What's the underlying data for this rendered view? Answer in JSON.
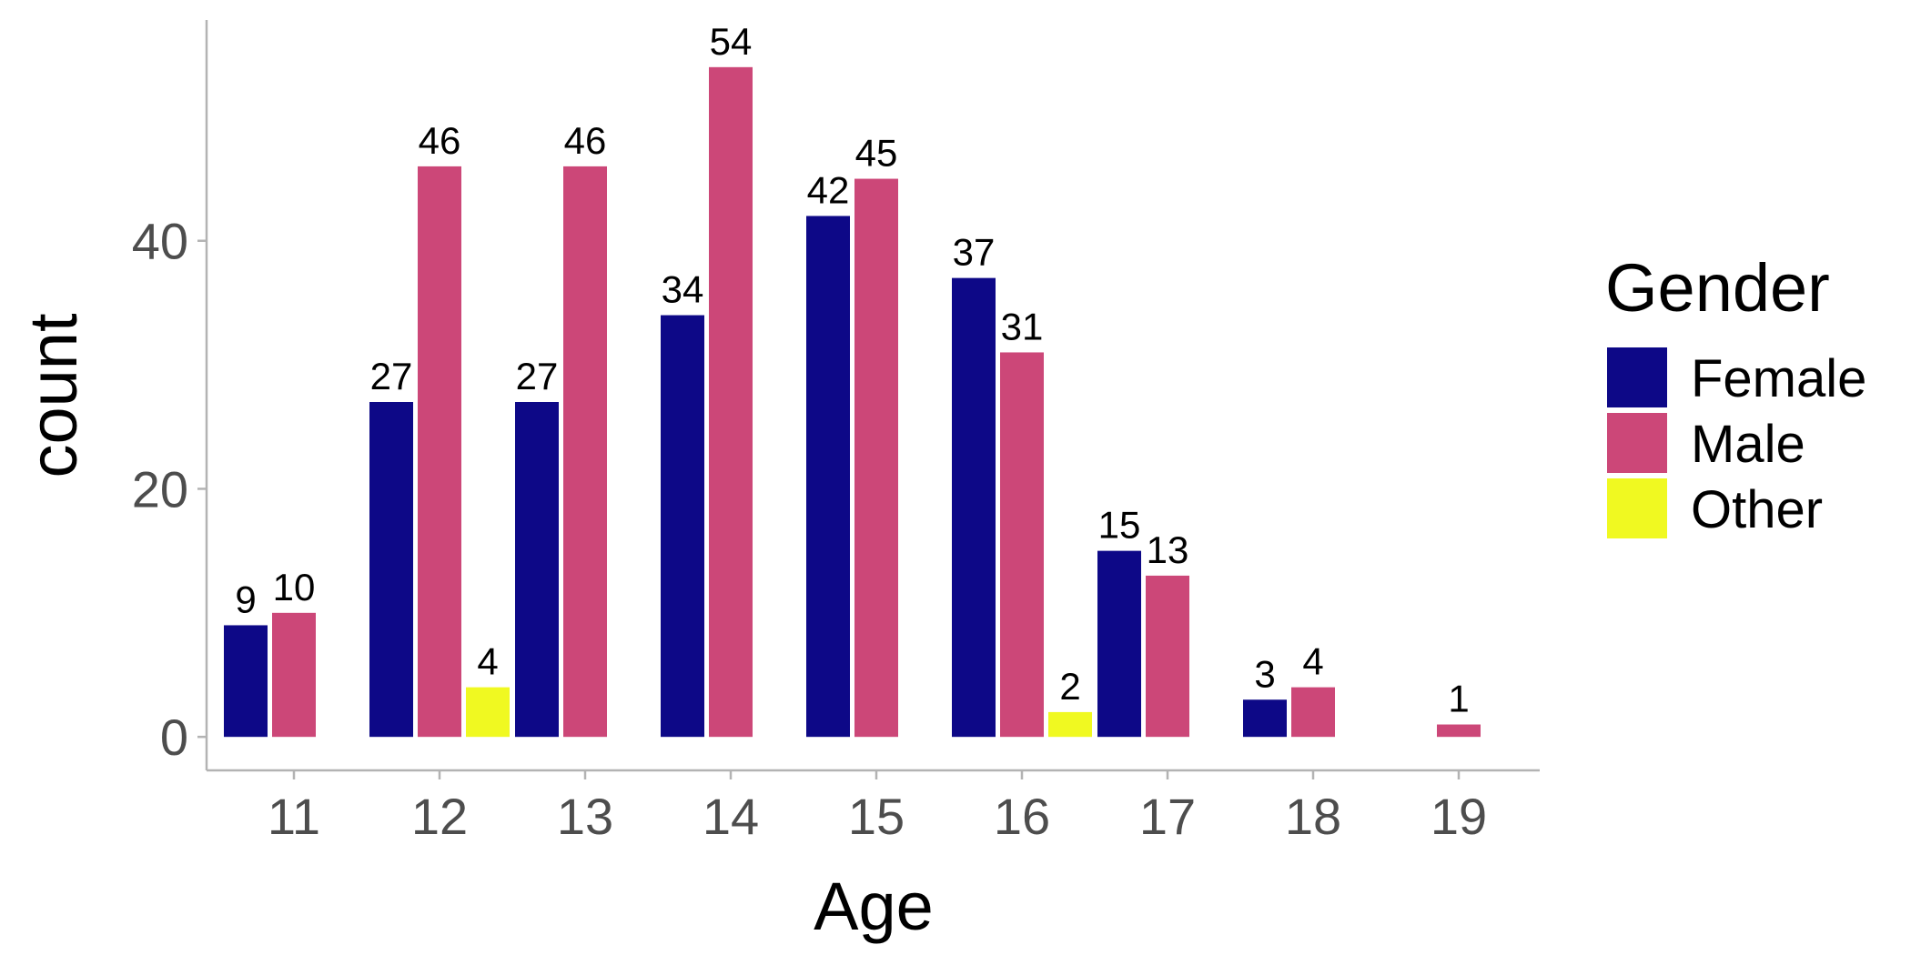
{
  "chart_data": {
    "type": "bar",
    "title": "",
    "xlabel": "Age",
    "ylabel": "count",
    "categories": [
      "11",
      "12",
      "13",
      "14",
      "15",
      "16",
      "17",
      "18",
      "19"
    ],
    "series": [
      {
        "name": "Female",
        "color": "#0d0887",
        "values": [
          9,
          27,
          27,
          34,
          42,
          37,
          15,
          3,
          null
        ]
      },
      {
        "name": "Male",
        "color": "#cc4778",
        "values": [
          10,
          46,
          46,
          54,
          45,
          31,
          13,
          4,
          1
        ]
      },
      {
        "name": "Other",
        "color": "#f0f921",
        "values": [
          null,
          4,
          null,
          null,
          null,
          2,
          null,
          null,
          null
        ]
      }
    ],
    "yticks": [
      0,
      20,
      40
    ],
    "ylim": [
      -2.7,
      57.8
    ],
    "grid": false,
    "legend": {
      "title": "Gender",
      "position": "right"
    }
  }
}
